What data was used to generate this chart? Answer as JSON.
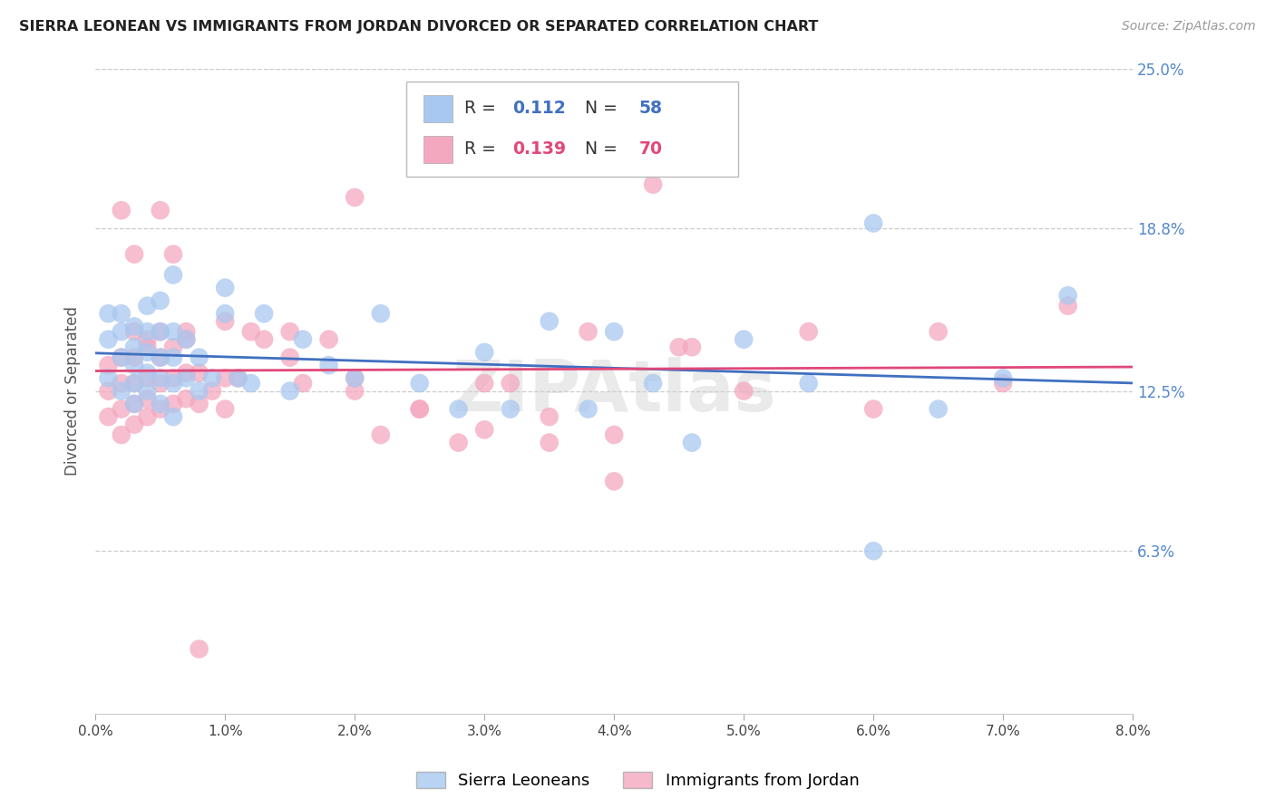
{
  "title": "SIERRA LEONEAN VS IMMIGRANTS FROM JORDAN DIVORCED OR SEPARATED CORRELATION CHART",
  "source_text": "Source: ZipAtlas.com",
  "ylabel": "Divorced or Separated",
  "xlim": [
    0.0,
    0.08
  ],
  "ylim": [
    0.0,
    0.25
  ],
  "xtick_labels": [
    "0.0%",
    "1.0%",
    "2.0%",
    "3.0%",
    "4.0%",
    "5.0%",
    "6.0%",
    "7.0%",
    "8.0%"
  ],
  "xtick_values": [
    0.0,
    0.01,
    0.02,
    0.03,
    0.04,
    0.05,
    0.06,
    0.07,
    0.08
  ],
  "ytick_labels": [
    "6.3%",
    "12.5%",
    "18.8%",
    "25.0%"
  ],
  "ytick_values": [
    0.063,
    0.125,
    0.188,
    0.25
  ],
  "blue_R": 0.112,
  "blue_N": 58,
  "pink_R": 0.139,
  "pink_N": 70,
  "blue_color": "#A8C8F0",
  "pink_color": "#F4A8C0",
  "blue_line_color": "#4070C0",
  "pink_line_color": "#E04878",
  "legend_label_blue": "Sierra Leoneans",
  "legend_label_pink": "Immigrants from Jordan",
  "watermark_text": "ZIPAtlas",
  "background_color": "#ffffff",
  "grid_color": "#cccccc",
  "right_axis_color": "#5588cc",
  "blue_x": [
    0.001,
    0.001,
    0.001,
    0.002,
    0.002,
    0.002,
    0.002,
    0.003,
    0.003,
    0.003,
    0.003,
    0.003,
    0.004,
    0.004,
    0.004,
    0.004,
    0.004,
    0.005,
    0.005,
    0.005,
    0.005,
    0.005,
    0.006,
    0.006,
    0.006,
    0.007,
    0.007,
    0.008,
    0.008,
    0.009,
    0.01,
    0.01,
    0.011,
    0.012,
    0.013,
    0.015,
    0.016,
    0.018,
    0.02,
    0.022,
    0.025,
    0.028,
    0.03,
    0.032,
    0.035,
    0.038,
    0.04,
    0.043,
    0.046,
    0.05,
    0.055,
    0.06,
    0.065,
    0.07,
    0.075,
    0.06,
    0.006,
    0.006
  ],
  "blue_y": [
    0.13,
    0.145,
    0.155,
    0.125,
    0.138,
    0.148,
    0.155,
    0.12,
    0.128,
    0.135,
    0.142,
    0.15,
    0.125,
    0.132,
    0.14,
    0.148,
    0.158,
    0.12,
    0.13,
    0.138,
    0.148,
    0.16,
    0.128,
    0.138,
    0.148,
    0.13,
    0.145,
    0.125,
    0.138,
    0.13,
    0.155,
    0.165,
    0.13,
    0.128,
    0.155,
    0.125,
    0.145,
    0.135,
    0.13,
    0.155,
    0.128,
    0.118,
    0.14,
    0.118,
    0.152,
    0.118,
    0.148,
    0.128,
    0.105,
    0.145,
    0.128,
    0.063,
    0.118,
    0.13,
    0.162,
    0.19,
    0.17,
    0.115
  ],
  "pink_x": [
    0.001,
    0.001,
    0.001,
    0.002,
    0.002,
    0.002,
    0.002,
    0.003,
    0.003,
    0.003,
    0.003,
    0.003,
    0.004,
    0.004,
    0.004,
    0.004,
    0.005,
    0.005,
    0.005,
    0.005,
    0.006,
    0.006,
    0.006,
    0.007,
    0.007,
    0.007,
    0.008,
    0.008,
    0.009,
    0.01,
    0.01,
    0.011,
    0.012,
    0.013,
    0.015,
    0.016,
    0.018,
    0.02,
    0.022,
    0.025,
    0.028,
    0.03,
    0.032,
    0.035,
    0.038,
    0.04,
    0.043,
    0.046,
    0.05,
    0.055,
    0.06,
    0.065,
    0.07,
    0.075,
    0.02,
    0.025,
    0.03,
    0.035,
    0.04,
    0.045,
    0.002,
    0.003,
    0.004,
    0.005,
    0.006,
    0.007,
    0.008,
    0.01,
    0.015,
    0.02
  ],
  "pink_y": [
    0.115,
    0.125,
    0.135,
    0.108,
    0.118,
    0.128,
    0.138,
    0.112,
    0.12,
    0.128,
    0.138,
    0.148,
    0.115,
    0.122,
    0.13,
    0.142,
    0.118,
    0.128,
    0.138,
    0.148,
    0.12,
    0.13,
    0.142,
    0.122,
    0.132,
    0.145,
    0.12,
    0.132,
    0.125,
    0.118,
    0.13,
    0.13,
    0.148,
    0.145,
    0.138,
    0.128,
    0.145,
    0.13,
    0.108,
    0.118,
    0.105,
    0.11,
    0.128,
    0.115,
    0.148,
    0.108,
    0.205,
    0.142,
    0.125,
    0.148,
    0.118,
    0.148,
    0.128,
    0.158,
    0.2,
    0.118,
    0.128,
    0.105,
    0.09,
    0.142,
    0.195,
    0.178,
    0.145,
    0.195,
    0.178,
    0.148,
    0.025,
    0.152,
    0.148,
    0.125
  ]
}
